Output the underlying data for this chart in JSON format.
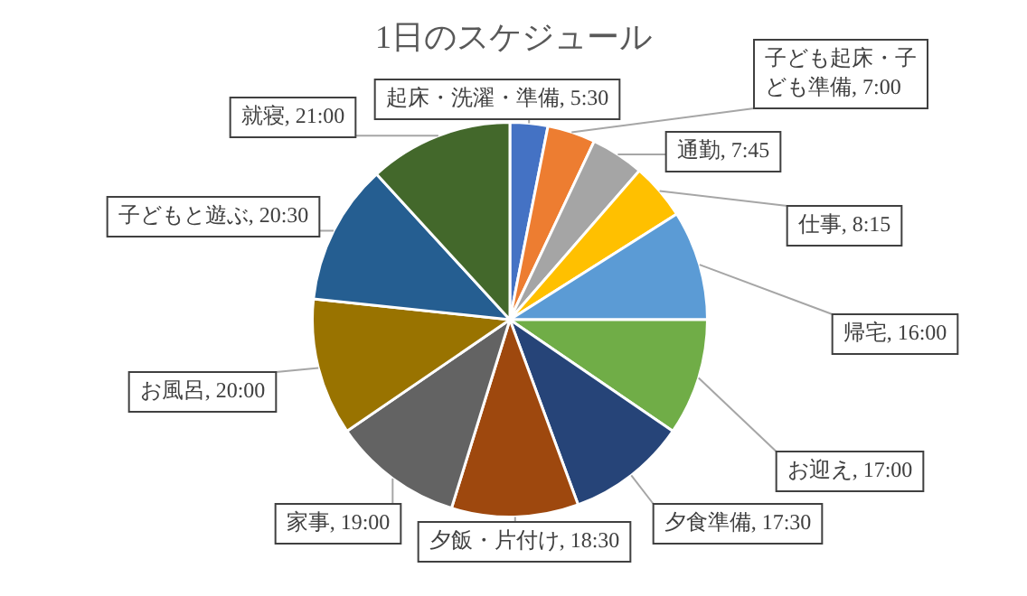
{
  "chart_data": {
    "type": "pie",
    "title": "1日のスケジュール",
    "categories": [
      "起床・洗濯・準備",
      "子ども起床・子ども準備",
      "通勤",
      "仕事",
      "帰宅",
      "お迎え",
      "夕食準備",
      "夕飯・片付け",
      "家事",
      "お風呂",
      "子どもと遊ぶ",
      "就寝"
    ],
    "values": [
      5.5,
      7,
      7.75,
      8.25,
      16,
      17,
      17.5,
      18.5,
      19,
      20,
      20.5,
      21
    ],
    "value_labels": [
      "5:30",
      "7:00",
      "7:45",
      "8:15",
      "16:00",
      "17:00",
      "17:30",
      "18:30",
      "19:00",
      "20:00",
      "20:30",
      "21:00"
    ],
    "colors": [
      "#4472c4",
      "#ed7d31",
      "#a5a5a5",
      "#ffc000",
      "#5b9bd5",
      "#70ad47",
      "#264478",
      "#9e480e",
      "#636363",
      "#997300",
      "#255e91",
      "#43682b"
    ]
  }
}
